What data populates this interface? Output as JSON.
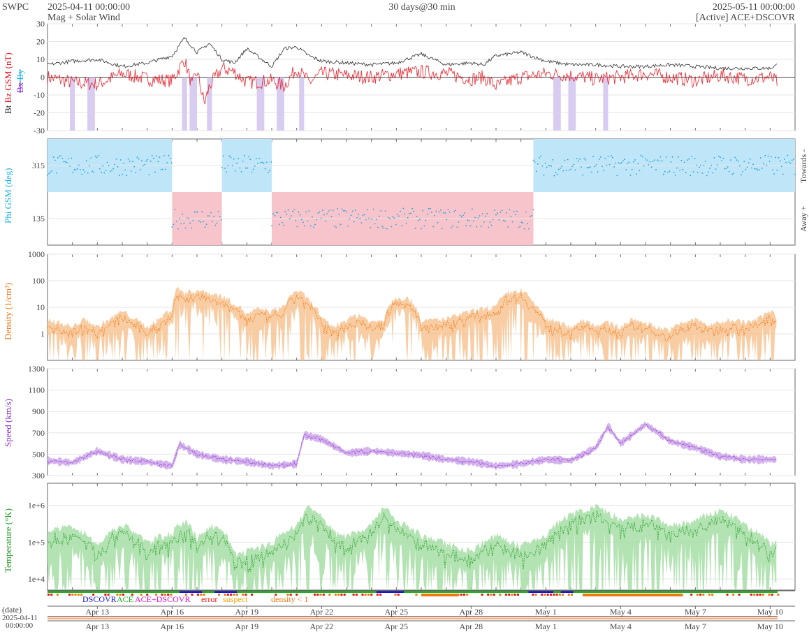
{
  "header": {
    "org": "SWPC",
    "start": "2025-04-11 00:00:00",
    "subtitle": "Mag + Solar Wind",
    "span": "30 days@30 min",
    "end": "2025-05-11 00:00:00",
    "source": "[Active] ACE+DSCOVR"
  },
  "colors": {
    "bt": "#222222",
    "bz": "#e8141e",
    "bx": "#8a2be2",
    "by": "#1eb4e6",
    "phi_pt": "#1ea0dc",
    "phi_towards": "#bfe6f8",
    "phi_away": "#f8c4cc",
    "density": "#f07814",
    "density_fill": "#f8c08c",
    "speed": "#8c32c8",
    "speed_fill": "#caa0ea",
    "temp": "#28a028",
    "temp_fill": "#a0dca0",
    "dscovr": "#1414d2",
    "ace": "#1eb41e",
    "error": "#e81414",
    "suspect": "#f0a000",
    "low_density": "#f07814"
  },
  "legend": {
    "dscovr": "DSCOVR",
    "ace": "ACE",
    "both": "ACE+DSCOVR",
    "error": "error",
    "suspect": "suspect",
    "low_density": "density < 1"
  },
  "footer": {
    "date_label": "(date)",
    "start_date": "2025-04-11",
    "start_time": "00:00:00"
  },
  "chart_data": [
    {
      "type": "line",
      "ylabel": [
        "Bt",
        "Bz GSM (nT)",
        "Bx",
        "By"
      ],
      "ylim": [
        -30,
        30
      ],
      "yticks": [
        -30,
        -20,
        -10,
        0,
        10,
        20,
        30
      ],
      "xlim": [
        0,
        30
      ],
      "series": [
        {
          "name": "Bt",
          "x": [
            0,
            1,
            2,
            3,
            4,
            5,
            5.5,
            6,
            6.5,
            7,
            7.5,
            8,
            9,
            9.5,
            10,
            10.5,
            11,
            12,
            13,
            14,
            15,
            16,
            17,
            17.5,
            18,
            19,
            20,
            21,
            22,
            23,
            24,
            25,
            26,
            27,
            28,
            29,
            29.3
          ],
          "values": [
            7,
            9,
            10,
            6,
            8,
            12,
            22,
            14,
            19,
            10,
            8,
            16,
            6,
            16,
            17,
            12,
            9,
            8,
            7,
            8,
            13,
            7,
            8,
            7,
            12,
            14,
            9,
            7,
            7,
            6,
            6,
            7,
            6,
            5,
            5,
            5,
            7
          ]
        },
        {
          "name": "Bz",
          "x": [
            0,
            1,
            2,
            3,
            4,
            5,
            5.5,
            5.8,
            6,
            6.3,
            6.5,
            7,
            7.5,
            8,
            9,
            9.5,
            10,
            10.5,
            11,
            12,
            13,
            14,
            15,
            16,
            17,
            17.5,
            18,
            19,
            20,
            21,
            22,
            23,
            24,
            25,
            26,
            27,
            28,
            29,
            29.3
          ],
          "values": [
            0,
            -3,
            -4,
            2,
            -1,
            -2,
            10,
            -5,
            3,
            -15,
            -5,
            5,
            3,
            -3,
            -2,
            -5,
            5,
            -3,
            2,
            1,
            0,
            2,
            3,
            2,
            -1,
            0,
            -5,
            0,
            2,
            1,
            -1,
            0,
            2,
            0,
            -2,
            1,
            -1,
            0,
            -3
          ]
        }
      ]
    },
    {
      "type": "scatter",
      "ylabel": "Phi GSM (deg)",
      "yticks": [
        135,
        315
      ],
      "ylim": [
        45,
        405
      ],
      "side_labels": [
        "Towards -",
        "Away +"
      ],
      "sectors": [
        {
          "from": 0,
          "to": 5,
          "sector": "towards"
        },
        {
          "from": 5,
          "to": 7,
          "sector": "away"
        },
        {
          "from": 7,
          "to": 9,
          "sector": "towards"
        },
        {
          "from": 9,
          "to": 19.5,
          "sector": "away"
        },
        {
          "from": 19.5,
          "to": 30,
          "sector": "towards"
        }
      ]
    },
    {
      "type": "line",
      "ylabel": "Density (1/cm³)",
      "yscale": "log",
      "ylim": [
        0.1,
        1000
      ],
      "yticks": [
        1,
        10,
        100,
        1000
      ],
      "x": [
        0,
        0.5,
        1,
        1.5,
        2,
        2.5,
        3,
        3.5,
        4,
        4.5,
        5,
        5.2,
        5.5,
        6,
        6.5,
        7,
        7.5,
        8,
        8.5,
        9,
        9.5,
        10,
        10.5,
        11,
        11.5,
        12,
        12.5,
        13,
        13.5,
        14,
        14.5,
        15,
        15.5,
        16,
        16.5,
        17,
        17.5,
        18,
        18.5,
        19,
        19.5,
        20,
        20.5,
        21,
        21.5,
        22,
        22.5,
        23,
        23.5,
        24,
        24.5,
        25,
        25.5,
        26,
        26.5,
        27,
        27.5,
        28,
        28.5,
        29,
        29.3
      ],
      "values": [
        2,
        1.5,
        1,
        2,
        1,
        2,
        4,
        2,
        1,
        2,
        5,
        30,
        20,
        25,
        20,
        15,
        8,
        3,
        5,
        4,
        6,
        25,
        10,
        2,
        1,
        2,
        3,
        1.5,
        2,
        14,
        12,
        1.5,
        2,
        2,
        3,
        4,
        5,
        6,
        20,
        25,
        8,
        2,
        1.5,
        1,
        2,
        1.2,
        1.5,
        1,
        2,
        1.5,
        1,
        0.8,
        1.5,
        2,
        1.2,
        1.5,
        2,
        1.5,
        2,
        4,
        2.5
      ]
    },
    {
      "type": "line",
      "ylabel": "Speed (km/s)",
      "ylim": [
        300,
        1300
      ],
      "yticks": [
        300,
        500,
        700,
        900,
        1100,
        1300
      ],
      "x": [
        0,
        1,
        2,
        3,
        4,
        5,
        5.3,
        6,
        7,
        8,
        9,
        10,
        10.3,
        11,
        12,
        13,
        14,
        15,
        16,
        17,
        18,
        19,
        20,
        21,
        22,
        22.5,
        23,
        24,
        25,
        26,
        27,
        28,
        29,
        29.3
      ],
      "values": [
        440,
        420,
        530,
        450,
        430,
        390,
        590,
        500,
        450,
        430,
        390,
        410,
        680,
        640,
        510,
        530,
        510,
        490,
        450,
        430,
        390,
        410,
        450,
        440,
        560,
        760,
        600,
        780,
        620,
        560,
        480,
        450,
        450,
        450
      ]
    },
    {
      "type": "line",
      "ylabel": "Temperature (°K)",
      "yscale": "log",
      "ylim": [
        5000,
        4000000
      ],
      "ytick_labels": [
        "1e+4",
        "1e+5",
        "1e+6"
      ],
      "x": [
        0,
        1,
        2,
        3,
        4,
        5,
        5.5,
        6,
        6.5,
        7,
        7.5,
        8,
        9,
        10,
        10.5,
        11,
        11.5,
        12,
        13,
        13.5,
        14,
        15,
        16,
        17,
        18,
        19,
        20,
        21,
        22,
        23,
        24,
        25,
        26,
        27,
        28,
        29,
        29.3
      ],
      "values": [
        100000,
        150000,
        40000,
        160000,
        50000,
        100000,
        200000,
        60000,
        150000,
        120000,
        25000,
        30000,
        50000,
        150000,
        500000,
        250000,
        100000,
        80000,
        150000,
        500000,
        200000,
        80000,
        50000,
        30000,
        80000,
        40000,
        80000,
        300000,
        500000,
        200000,
        300000,
        150000,
        200000,
        400000,
        150000,
        50000,
        60000
      ]
    }
  ],
  "x_axis": {
    "ticks": [
      {
        "day": 2,
        "label": "Apr 13"
      },
      {
        "day": 5,
        "label": "Apr 16"
      },
      {
        "day": 8,
        "label": "Apr 19"
      },
      {
        "day": 11,
        "label": "Apr 22"
      },
      {
        "day": 14,
        "label": "Apr 25"
      },
      {
        "day": 17,
        "label": "Apr 28"
      },
      {
        "day": 20,
        "label": "May 1"
      },
      {
        "day": 23,
        "label": "May 4"
      },
      {
        "day": 26,
        "label": "May 7"
      },
      {
        "day": 29,
        "label": "May 10"
      }
    ]
  }
}
